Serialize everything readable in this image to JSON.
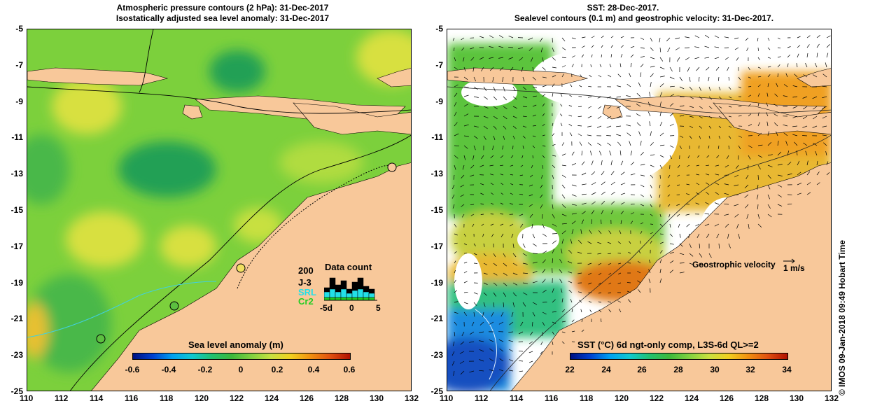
{
  "left_panel": {
    "title_line1": "Atmospheric pressure contours (2 hPa): 31-Dec-2017",
    "title_line2": "Isostatically adjusted sea level anomaly: 31-Dec-2017",
    "legend": {
      "count_value": "200",
      "title": "Data count",
      "series": [
        {
          "label": "J-3",
          "color": "#000000"
        },
        {
          "label": "SRL",
          "color": "#22e0e8"
        },
        {
          "label": "Cr2",
          "color": "#22cc22"
        }
      ],
      "x_ticks": [
        "-5d",
        "0",
        "5"
      ]
    },
    "colorbar": {
      "label": "Sea level anomaly (m)",
      "ticks": [
        "-0.6",
        "-0.4",
        "-0.2",
        "0",
        "0.2",
        "0.4",
        "0.6"
      ]
    }
  },
  "right_panel": {
    "title_line1": "SST: 28-Dec-2017.",
    "title_line2": "Sealevel contours (0.1 m) and geostrophic velocity: 31-Dec-2017.",
    "velocity_label": "Geostrophic velocity",
    "velocity_scale": "1 m/s",
    "colorbar": {
      "label": "SST (°C) 6d ngt-only comp, L3S-6d QL>=2",
      "ticks": [
        "22",
        "24",
        "26",
        "28",
        "30",
        "32",
        "34"
      ]
    }
  },
  "axes": {
    "x_ticks": [
      "110",
      "112",
      "114",
      "116",
      "118",
      "120",
      "122",
      "124",
      "126",
      "128",
      "130",
      "132"
    ],
    "y_ticks": [
      "-5",
      "-7",
      "-9",
      "-11",
      "-13",
      "-15",
      "-17",
      "-19",
      "-21",
      "-23",
      "-25"
    ],
    "lon_range": [
      110,
      132
    ],
    "lat_range": [
      -25,
      -5
    ]
  },
  "credit": "© IMOS 09-Jan-2018 09:49 Hobart Time",
  "colors": {
    "land": "#f8c89a",
    "sla_background": "#7cd03c",
    "sst_missing": "#ffffff"
  }
}
